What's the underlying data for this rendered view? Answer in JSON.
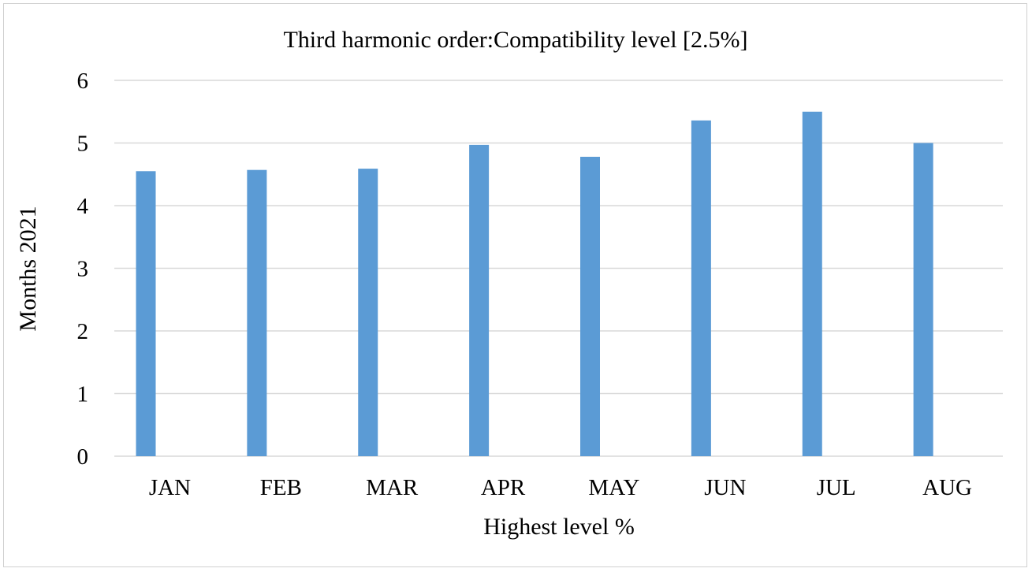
{
  "chart_data": {
    "type": "bar",
    "title": "Third harmonic order:Compatibility level [2.5%]",
    "xlabel": "Highest level %",
    "ylabel": "Months 2021",
    "categories": [
      "JAN",
      "FEB",
      "MAR",
      "APR",
      "MAY",
      "JUN",
      "JUL",
      "AUG"
    ],
    "values": [
      4.55,
      4.57,
      4.59,
      4.97,
      4.78,
      5.36,
      5.5,
      5.0
    ],
    "ylim": [
      0,
      6
    ],
    "yticks": [
      "0",
      "1",
      "2",
      "3",
      "4",
      "5",
      "6"
    ],
    "grid": true,
    "bar_color": "#5b9bd5",
    "grid_color": "#d9d9d9"
  }
}
